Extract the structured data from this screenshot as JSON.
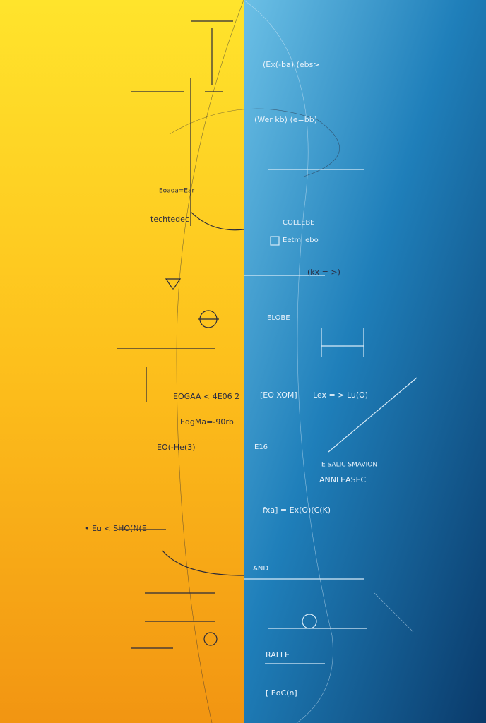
{
  "image": {
    "labels": [
      "(Ex(-ba) (ebs>",
      "(Wer kb) (e=bb)",
      "techtedec",
      "Eoaoa=Ear",
      "EOGAA < 4E06 2",
      "EdgMa=-90rb",
      "EO(-He(3)",
      "• Eu < SHO(N(E",
      "[EO XOM]",
      "Lex = > Lu(O)",
      "fxa] = Ex(O)(C(K)",
      "ANNLEASEC",
      "E SALIC SMAVION",
      "Eetml ebo",
      "COLLEBE",
      "ELOBE",
      "E16",
      "AND",
      "RALLE",
      "[ EoC(n]",
      "(kx = >)"
    ]
  }
}
